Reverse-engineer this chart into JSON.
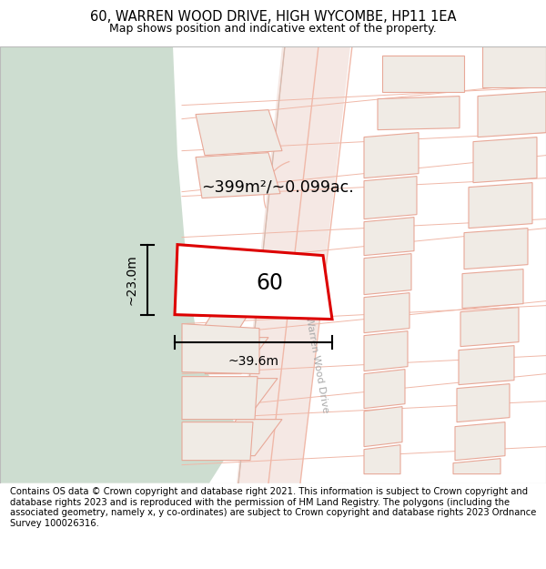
{
  "title": "60, WARREN WOOD DRIVE, HIGH WYCOMBE, HP11 1EA",
  "subtitle": "Map shows position and indicative extent of the property.",
  "footer": "Contains OS data © Crown copyright and database right 2021. This information is subject to Crown copyright and database rights 2023 and is reproduced with the permission of HM Land Registry. The polygons (including the associated geometry, namely x, y co-ordinates) are subject to Crown copyright and database rights 2023 Ordnance Survey 100026316.",
  "area_label": "~399m²/~0.099ac.",
  "width_label": "~39.6m",
  "height_label": "~23.0m",
  "plot_number": "60",
  "bg_map_color": "#f5f3f0",
  "green_area_color": "#cdddd0",
  "plot_outline_color": "#dd0000",
  "plot_fill_color": "#ffffff",
  "road_line_color": "#f0b8a8",
  "building_fill": "#f0ebe5",
  "building_edge": "#e8a898",
  "road_fill": "#f5e8e4",
  "title_fontsize": 10.5,
  "subtitle_fontsize": 9,
  "footer_fontsize": 7.2
}
